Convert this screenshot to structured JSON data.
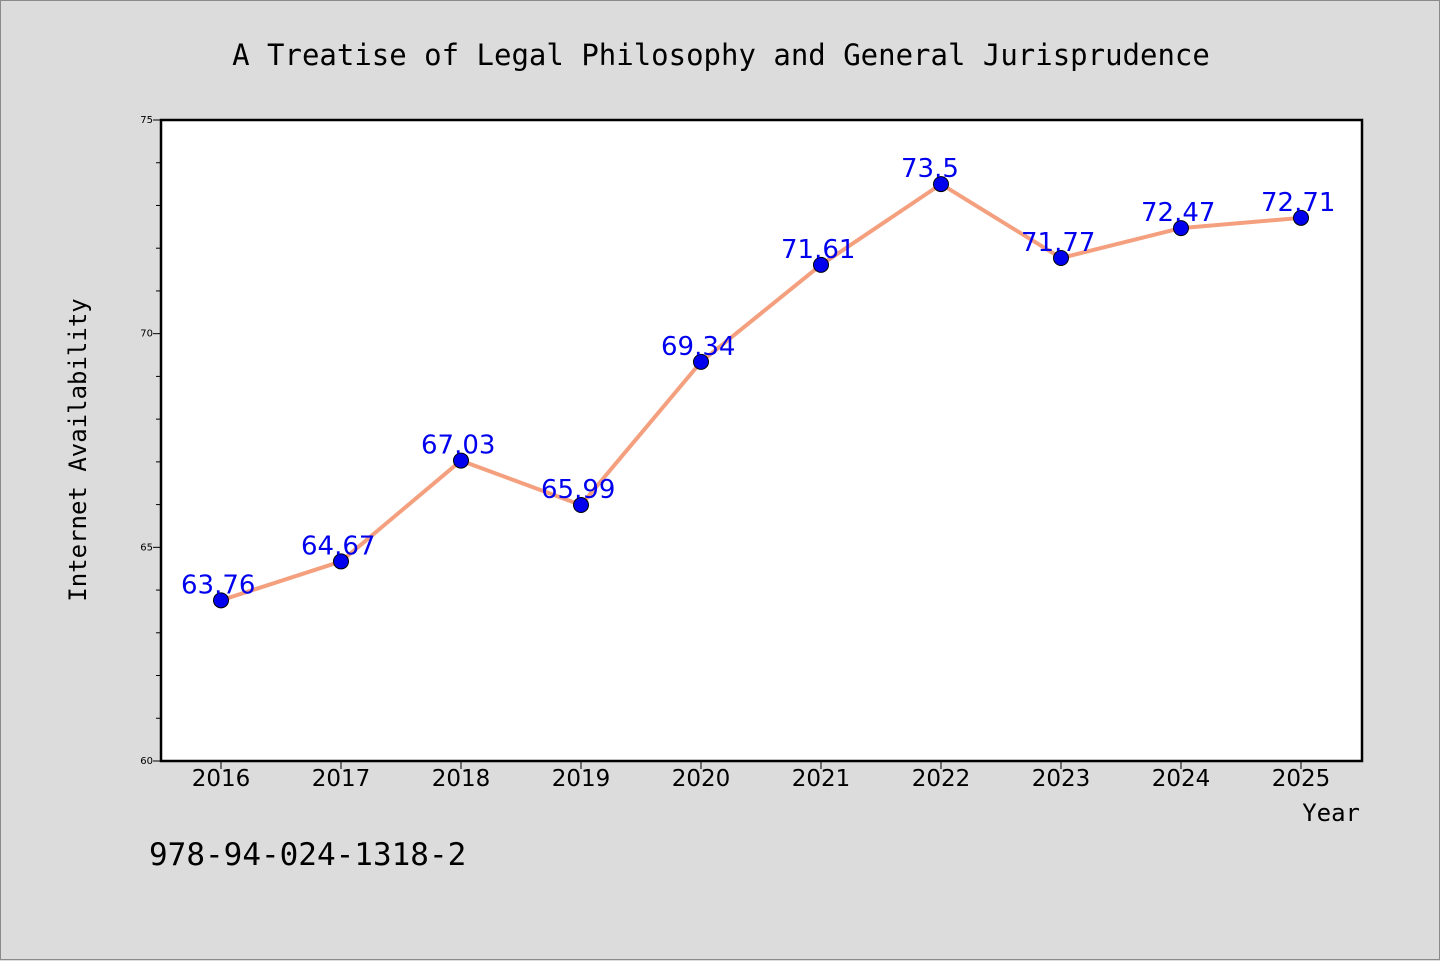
{
  "chart_data": {
    "type": "line",
    "title": "A Treatise of Legal Philosophy and General Jurisprudence",
    "xlabel": "Year",
    "ylabel": "Internet Availability",
    "categories": [
      "2016",
      "2017",
      "2018",
      "2019",
      "2020",
      "2021",
      "2022",
      "2023",
      "2024",
      "2025"
    ],
    "series": [
      {
        "values": [
          63.76,
          64.67,
          67.03,
          65.99,
          69.34,
          71.61,
          73.5,
          71.77,
          72.47,
          72.71
        ],
        "data_labels": [
          "63.76",
          "64.67",
          "67.03",
          "65.99",
          "69.34",
          "71.61",
          "73.5",
          "71.77",
          "72.47",
          "72.71"
        ],
        "line_color": "#f4a07e",
        "marker_color": "#0000ee",
        "label_color": "#0000ee"
      }
    ],
    "ylim": [
      60,
      75
    ],
    "yticks": [
      "60",
      "65",
      "70",
      "75"
    ],
    "grid": false,
    "legend": "none"
  },
  "footer": {
    "isbn": "978-94-024-1318-2"
  },
  "colors": {
    "background": "#dcdcdc",
    "plot_background": "#ffffff",
    "axis": "#000000"
  }
}
